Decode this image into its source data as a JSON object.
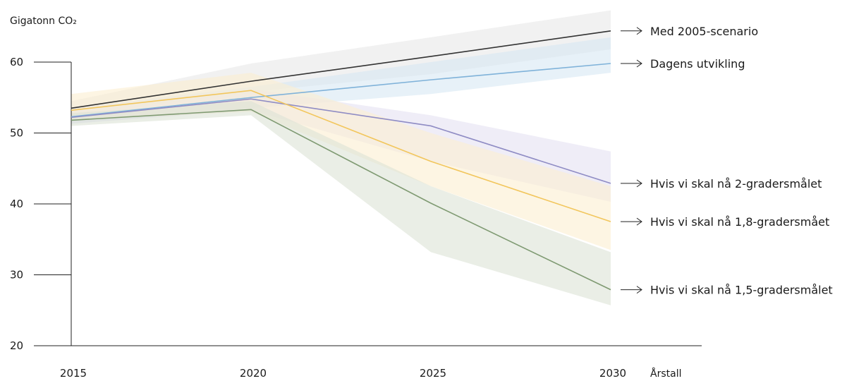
{
  "chart_data": {
    "type": "line",
    "ylabel": "Gigatonn CO₂",
    "xlabel": "Årstall",
    "x": [
      2015,
      2020,
      2025,
      2030
    ],
    "xlim": [
      2015,
      2030
    ],
    "ylim": [
      20,
      60
    ],
    "yticks": [
      20,
      30,
      40,
      50,
      60
    ],
    "grid": false,
    "series": [
      {
        "name": "Med 2005-scenario",
        "color": "#333333",
        "band_color": "#e8e8e8",
        "values": [
          53.5,
          57.3,
          60.8,
          64.4
        ],
        "upper": [
          54.5,
          59.8,
          63.5,
          67.3
        ],
        "lower": [
          52.5,
          55.8,
          58.3,
          61.8
        ]
      },
      {
        "name": "Dagens utvikling",
        "color": "#7fb2d9",
        "band_color": "#d7e7f4",
        "values": [
          52.3,
          55.0,
          57.5,
          59.8
        ],
        "upper": [
          53.5,
          56.5,
          60.0,
          63.5
        ],
        "lower": [
          51.3,
          53.5,
          55.5,
          58.5
        ]
      },
      {
        "name": "Hvis vi skal nå 2-gradersmålet",
        "color": "#8f8cc4",
        "band_color": "#e4e1f2",
        "values": [
          52.2,
          54.8,
          51.0,
          42.9
        ],
        "upper": [
          53.5,
          56.2,
          52.5,
          47.4
        ],
        "lower": [
          51.3,
          53.2,
          46.0,
          40.3
        ]
      },
      {
        "name": "Hvis vi skal nå 1,8-gradersmået",
        "color": "#f2c65c",
        "band_color": "#fcefd0",
        "values": [
          53.2,
          56.0,
          46.0,
          37.5
        ],
        "upper": [
          55.5,
          58.5,
          50.0,
          42.5
        ],
        "lower": [
          51.8,
          53.0,
          42.5,
          33.5
        ]
      },
      {
        "name": "Hvis vi skal nå 1,5-gradersmålet",
        "color": "#7f9a72",
        "band_color": "#dce3d6",
        "values": [
          51.8,
          53.3,
          40.1,
          27.9
        ],
        "upper": [
          52.8,
          54.5,
          42.5,
          33.2
        ],
        "lower": [
          51.0,
          52.5,
          33.2,
          25.7
        ]
      }
    ]
  }
}
